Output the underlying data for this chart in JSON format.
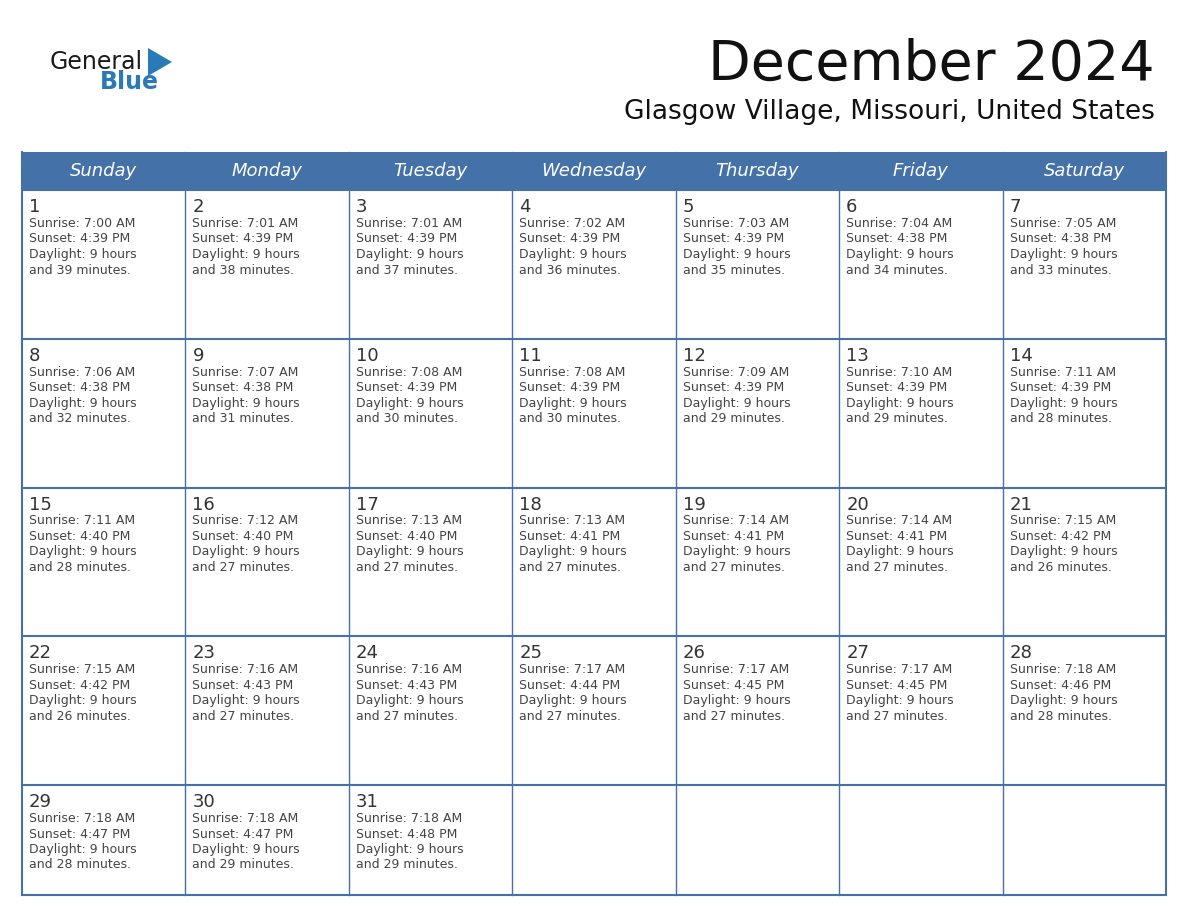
{
  "title": "December 2024",
  "subtitle": "Glasgow Village, Missouri, United States",
  "days_of_week": [
    "Sunday",
    "Monday",
    "Tuesday",
    "Wednesday",
    "Thursday",
    "Friday",
    "Saturday"
  ],
  "header_bg": "#4472a8",
  "header_text": "#ffffff",
  "cell_bg": "#ffffff",
  "cell_bg_alt": "#f0f0f0",
  "grid_line_color": "#4472a8",
  "day_number_color": "#333333",
  "cell_text_color": "#444444",
  "title_color": "#111111",
  "subtitle_color": "#111111",
  "logo_general_color": "#1a1a1a",
  "logo_blue_color": "#2a7ab8",
  "logo_triangle_color": "#2a7ab8",
  "calendar_data": [
    [
      {
        "day": 1,
        "sunrise": "7:00 AM",
        "sunset": "4:39 PM",
        "daylight_hrs": 9,
        "daylight_min": "39 minutes."
      },
      {
        "day": 2,
        "sunrise": "7:01 AM",
        "sunset": "4:39 PM",
        "daylight_hrs": 9,
        "daylight_min": "38 minutes."
      },
      {
        "day": 3,
        "sunrise": "7:01 AM",
        "sunset": "4:39 PM",
        "daylight_hrs": 9,
        "daylight_min": "37 minutes."
      },
      {
        "day": 4,
        "sunrise": "7:02 AM",
        "sunset": "4:39 PM",
        "daylight_hrs": 9,
        "daylight_min": "36 minutes."
      },
      {
        "day": 5,
        "sunrise": "7:03 AM",
        "sunset": "4:39 PM",
        "daylight_hrs": 9,
        "daylight_min": "35 minutes."
      },
      {
        "day": 6,
        "sunrise": "7:04 AM",
        "sunset": "4:38 PM",
        "daylight_hrs": 9,
        "daylight_min": "34 minutes."
      },
      {
        "day": 7,
        "sunrise": "7:05 AM",
        "sunset": "4:38 PM",
        "daylight_hrs": 9,
        "daylight_min": "33 minutes."
      }
    ],
    [
      {
        "day": 8,
        "sunrise": "7:06 AM",
        "sunset": "4:38 PM",
        "daylight_hrs": 9,
        "daylight_min": "32 minutes."
      },
      {
        "day": 9,
        "sunrise": "7:07 AM",
        "sunset": "4:38 PM",
        "daylight_hrs": 9,
        "daylight_min": "31 minutes."
      },
      {
        "day": 10,
        "sunrise": "7:08 AM",
        "sunset": "4:39 PM",
        "daylight_hrs": 9,
        "daylight_min": "30 minutes."
      },
      {
        "day": 11,
        "sunrise": "7:08 AM",
        "sunset": "4:39 PM",
        "daylight_hrs": 9,
        "daylight_min": "30 minutes."
      },
      {
        "day": 12,
        "sunrise": "7:09 AM",
        "sunset": "4:39 PM",
        "daylight_hrs": 9,
        "daylight_min": "29 minutes."
      },
      {
        "day": 13,
        "sunrise": "7:10 AM",
        "sunset": "4:39 PM",
        "daylight_hrs": 9,
        "daylight_min": "29 minutes."
      },
      {
        "day": 14,
        "sunrise": "7:11 AM",
        "sunset": "4:39 PM",
        "daylight_hrs": 9,
        "daylight_min": "28 minutes."
      }
    ],
    [
      {
        "day": 15,
        "sunrise": "7:11 AM",
        "sunset": "4:40 PM",
        "daylight_hrs": 9,
        "daylight_min": "28 minutes."
      },
      {
        "day": 16,
        "sunrise": "7:12 AM",
        "sunset": "4:40 PM",
        "daylight_hrs": 9,
        "daylight_min": "27 minutes."
      },
      {
        "day": 17,
        "sunrise": "7:13 AM",
        "sunset": "4:40 PM",
        "daylight_hrs": 9,
        "daylight_min": "27 minutes."
      },
      {
        "day": 18,
        "sunrise": "7:13 AM",
        "sunset": "4:41 PM",
        "daylight_hrs": 9,
        "daylight_min": "27 minutes."
      },
      {
        "day": 19,
        "sunrise": "7:14 AM",
        "sunset": "4:41 PM",
        "daylight_hrs": 9,
        "daylight_min": "27 minutes."
      },
      {
        "day": 20,
        "sunrise": "7:14 AM",
        "sunset": "4:41 PM",
        "daylight_hrs": 9,
        "daylight_min": "27 minutes."
      },
      {
        "day": 21,
        "sunrise": "7:15 AM",
        "sunset": "4:42 PM",
        "daylight_hrs": 9,
        "daylight_min": "26 minutes."
      }
    ],
    [
      {
        "day": 22,
        "sunrise": "7:15 AM",
        "sunset": "4:42 PM",
        "daylight_hrs": 9,
        "daylight_min": "26 minutes."
      },
      {
        "day": 23,
        "sunrise": "7:16 AM",
        "sunset": "4:43 PM",
        "daylight_hrs": 9,
        "daylight_min": "27 minutes."
      },
      {
        "day": 24,
        "sunrise": "7:16 AM",
        "sunset": "4:43 PM",
        "daylight_hrs": 9,
        "daylight_min": "27 minutes."
      },
      {
        "day": 25,
        "sunrise": "7:17 AM",
        "sunset": "4:44 PM",
        "daylight_hrs": 9,
        "daylight_min": "27 minutes."
      },
      {
        "day": 26,
        "sunrise": "7:17 AM",
        "sunset": "4:45 PM",
        "daylight_hrs": 9,
        "daylight_min": "27 minutes."
      },
      {
        "day": 27,
        "sunrise": "7:17 AM",
        "sunset": "4:45 PM",
        "daylight_hrs": 9,
        "daylight_min": "27 minutes."
      },
      {
        "day": 28,
        "sunrise": "7:18 AM",
        "sunset": "4:46 PM",
        "daylight_hrs": 9,
        "daylight_min": "28 minutes."
      }
    ],
    [
      {
        "day": 29,
        "sunrise": "7:18 AM",
        "sunset": "4:47 PM",
        "daylight_hrs": 9,
        "daylight_min": "28 minutes."
      },
      {
        "day": 30,
        "sunrise": "7:18 AM",
        "sunset": "4:47 PM",
        "daylight_hrs": 9,
        "daylight_min": "29 minutes."
      },
      {
        "day": 31,
        "sunrise": "7:18 AM",
        "sunset": "4:48 PM",
        "daylight_hrs": 9,
        "daylight_min": "29 minutes."
      },
      null,
      null,
      null,
      null
    ]
  ]
}
